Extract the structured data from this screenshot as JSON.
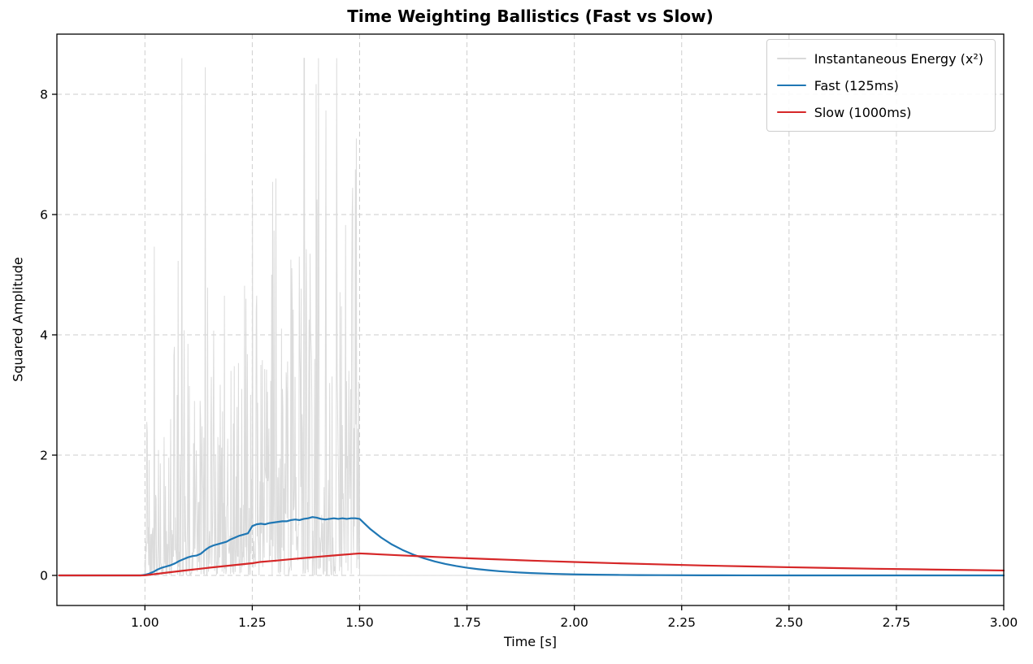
{
  "figure": {
    "background": "#ffffff",
    "title": "Time Weighting Ballistics (Fast vs Slow)"
  },
  "chart_data": {
    "type": "line",
    "title": "Time Weighting Ballistics (Fast vs Slow)",
    "xlabel": "Time [s]",
    "ylabel": "Squared Amplitude",
    "xlim": [
      0.795,
      3.0
    ],
    "ylim": [
      -0.5,
      9.0
    ],
    "xticks": [
      1.0,
      1.25,
      1.5,
      1.75,
      2.0,
      2.25,
      2.5,
      2.75,
      3.0
    ],
    "xtick_labels": [
      "1.00",
      "1.25",
      "1.50",
      "1.75",
      "2.00",
      "2.25",
      "2.50",
      "2.75",
      "3.00"
    ],
    "yticks": [
      0,
      2,
      4,
      6,
      8
    ],
    "ytick_labels": [
      "0",
      "2",
      "4",
      "6",
      "8"
    ],
    "grid": true,
    "grid_style": "dashed",
    "grid_color": "#c9c9c9",
    "axes_color": "#000000",
    "legend_position": "upper right",
    "series": [
      {
        "name": "Instantaneous Energy (x²)",
        "kind": "noise-burst",
        "color": "#d9d9d9",
        "linewidth": 1,
        "burst": {
          "t_start": 1.0,
          "t_end": 1.5,
          "samples": 460,
          "seed": 42,
          "sigma_start": 0.78,
          "sigma_end": 1.42,
          "cap": 8.6,
          "peaks": [
            [
              1.045,
              2.3
            ],
            [
              1.06,
              2.6
            ],
            [
              1.075,
              3.0
            ],
            [
              1.09,
              2.4
            ],
            [
              1.1,
              3.85
            ],
            [
              1.115,
              2.9
            ],
            [
              1.13,
              2.6
            ],
            [
              1.14,
              8.45
            ],
            [
              1.155,
              3.3
            ],
            [
              1.17,
              2.3
            ],
            [
              1.185,
              4.65
            ],
            [
              1.2,
              3.4
            ],
            [
              1.215,
              2.8
            ],
            [
              1.225,
              3.1
            ],
            [
              1.235,
              4.6
            ],
            [
              1.25,
              6.35
            ],
            [
              1.26,
              4.65
            ],
            [
              1.27,
              3.5
            ],
            [
              1.285,
              3.05
            ],
            [
              1.295,
              5.0
            ],
            [
              1.305,
              6.6
            ],
            [
              1.32,
              3.1
            ],
            [
              1.33,
              3.05
            ],
            [
              1.34,
              5.25
            ],
            [
              1.35,
              3.3
            ],
            [
              1.36,
              5.3
            ],
            [
              1.375,
              4.5
            ],
            [
              1.385,
              5.35
            ],
            [
              1.395,
              3.6
            ],
            [
              1.405,
              5.4
            ],
            [
              1.42,
              4.35
            ],
            [
              1.43,
              3.2
            ],
            [
              1.445,
              2.6
            ],
            [
              1.46,
              2.5
            ],
            [
              1.475,
              3.4
            ],
            [
              1.49,
              6.75
            ]
          ]
        }
      },
      {
        "name": "Fast (125ms)",
        "kind": "line",
        "color": "#1f77b4",
        "linewidth": 2.2,
        "points": [
          [
            0.8,
            0
          ],
          [
            0.99,
            0
          ],
          [
            1.0,
            0.01
          ],
          [
            1.01,
            0.03
          ],
          [
            1.02,
            0.06
          ],
          [
            1.03,
            0.1
          ],
          [
            1.04,
            0.13
          ],
          [
            1.05,
            0.15
          ],
          [
            1.06,
            0.17
          ],
          [
            1.07,
            0.2
          ],
          [
            1.08,
            0.24
          ],
          [
            1.09,
            0.27
          ],
          [
            1.1,
            0.3
          ],
          [
            1.11,
            0.32
          ],
          [
            1.12,
            0.33
          ],
          [
            1.13,
            0.36
          ],
          [
            1.14,
            0.42
          ],
          [
            1.15,
            0.47
          ],
          [
            1.16,
            0.5
          ],
          [
            1.17,
            0.52
          ],
          [
            1.18,
            0.54
          ],
          [
            1.19,
            0.56
          ],
          [
            1.2,
            0.6
          ],
          [
            1.21,
            0.63
          ],
          [
            1.22,
            0.66
          ],
          [
            1.23,
            0.68
          ],
          [
            1.24,
            0.7
          ],
          [
            1.25,
            0.82
          ],
          [
            1.26,
            0.85
          ],
          [
            1.27,
            0.86
          ],
          [
            1.28,
            0.85
          ],
          [
            1.29,
            0.87
          ],
          [
            1.3,
            0.88
          ],
          [
            1.31,
            0.89
          ],
          [
            1.32,
            0.9
          ],
          [
            1.33,
            0.9
          ],
          [
            1.34,
            0.92
          ],
          [
            1.35,
            0.93
          ],
          [
            1.36,
            0.92
          ],
          [
            1.37,
            0.94
          ],
          [
            1.38,
            0.95
          ],
          [
            1.39,
            0.97
          ],
          [
            1.4,
            0.96
          ],
          [
            1.41,
            0.94
          ],
          [
            1.42,
            0.93
          ],
          [
            1.43,
            0.94
          ],
          [
            1.44,
            0.95
          ],
          [
            1.45,
            0.94
          ],
          [
            1.46,
            0.95
          ],
          [
            1.47,
            0.94
          ],
          [
            1.48,
            0.95
          ],
          [
            1.49,
            0.95
          ],
          [
            1.5,
            0.94
          ],
          [
            1.525,
            0.77
          ],
          [
            1.55,
            0.63
          ],
          [
            1.575,
            0.515
          ],
          [
            1.6,
            0.423
          ],
          [
            1.625,
            0.346
          ],
          [
            1.65,
            0.284
          ],
          [
            1.675,
            0.232
          ],
          [
            1.7,
            0.19
          ],
          [
            1.725,
            0.156
          ],
          [
            1.75,
            0.128
          ],
          [
            1.775,
            0.105
          ],
          [
            1.8,
            0.086
          ],
          [
            1.825,
            0.07
          ],
          [
            1.85,
            0.058
          ],
          [
            1.875,
            0.047
          ],
          [
            1.9,
            0.039
          ],
          [
            1.95,
            0.026
          ],
          [
            2.0,
            0.017
          ],
          [
            2.05,
            0.012
          ],
          [
            2.1,
            0.008
          ],
          [
            2.15,
            0.005
          ],
          [
            2.2,
            0.004
          ],
          [
            2.3,
            0.002
          ],
          [
            2.4,
            0.001
          ],
          [
            2.5,
            0.0
          ],
          [
            2.75,
            0.0
          ],
          [
            3.0,
            0.0
          ]
        ]
      },
      {
        "name": "Slow (1000ms)",
        "kind": "line",
        "color": "#d62728",
        "linewidth": 2.2,
        "points": [
          [
            0.8,
            0
          ],
          [
            0.99,
            0
          ],
          [
            1.0,
            0.002
          ],
          [
            1.05,
            0.046
          ],
          [
            1.1,
            0.088
          ],
          [
            1.15,
            0.128
          ],
          [
            1.2,
            0.166
          ],
          [
            1.25,
            0.203
          ],
          [
            1.27,
            0.225
          ],
          [
            1.3,
            0.242
          ],
          [
            1.35,
            0.276
          ],
          [
            1.4,
            0.308
          ],
          [
            1.45,
            0.338
          ],
          [
            1.5,
            0.366
          ],
          [
            1.52,
            0.36
          ],
          [
            1.55,
            0.349
          ],
          [
            1.6,
            0.332
          ],
          [
            1.65,
            0.316
          ],
          [
            1.7,
            0.3
          ],
          [
            1.75,
            0.286
          ],
          [
            1.8,
            0.272
          ],
          [
            1.85,
            0.259
          ],
          [
            1.9,
            0.246
          ],
          [
            1.95,
            0.234
          ],
          [
            2.0,
            0.223
          ],
          [
            2.1,
            0.202
          ],
          [
            2.2,
            0.183
          ],
          [
            2.3,
            0.165
          ],
          [
            2.4,
            0.15
          ],
          [
            2.5,
            0.136
          ],
          [
            2.6,
            0.123
          ],
          [
            2.7,
            0.111
          ],
          [
            2.8,
            0.101
          ],
          [
            2.9,
            0.091
          ],
          [
            3.0,
            0.082
          ]
        ]
      }
    ]
  }
}
